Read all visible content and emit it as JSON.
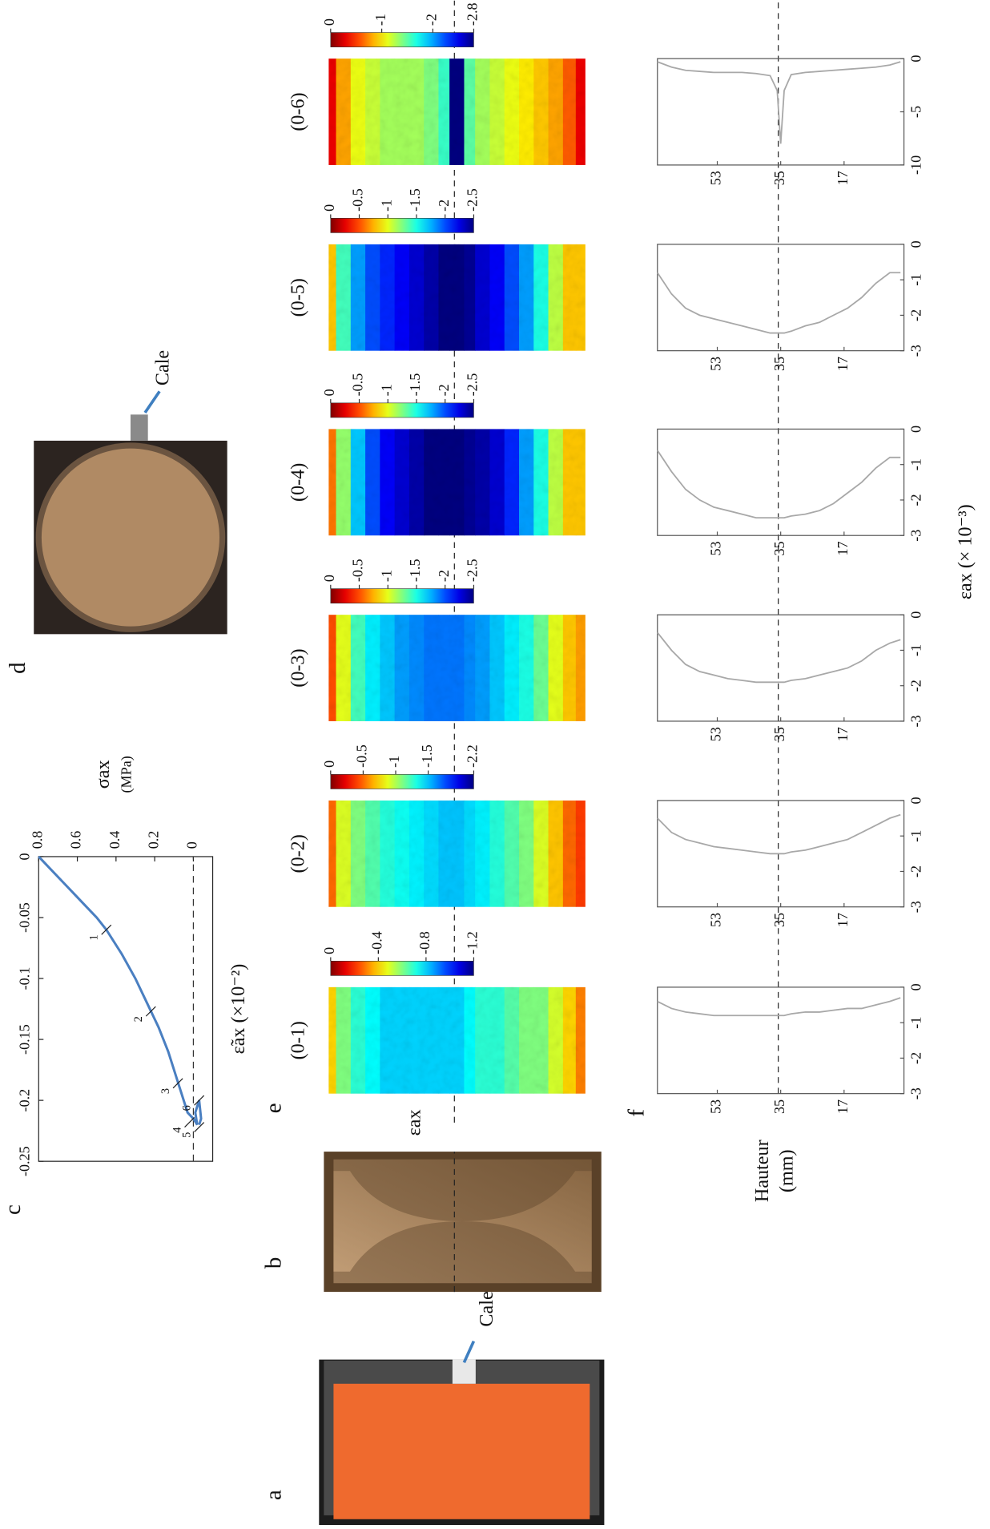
{
  "panel_labels": [
    "a",
    "b",
    "c",
    "d",
    "e",
    "f"
  ],
  "photo_labels": [
    "Cale",
    "Cale"
  ],
  "chart_data": [
    {
      "type": "line",
      "xlabel": "ε̃ax  (×10⁻²)",
      "ylabel": [
        "σax",
        "(MPa)"
      ],
      "x": [
        0,
        -0.01,
        -0.02,
        -0.03,
        -0.04,
        -0.05,
        -0.06,
        -0.08,
        -0.1,
        -0.12,
        -0.14,
        -0.16,
        -0.18,
        -0.19,
        -0.2,
        -0.21,
        -0.215,
        -0.22,
        -0.21,
        -0.2,
        -0.215,
        -0.22
      ],
      "y": [
        0.8,
        0.74,
        0.68,
        0.62,
        0.56,
        0.5,
        0.45,
        0.37,
        0.3,
        0.24,
        0.18,
        0.13,
        0.09,
        0.07,
        0.05,
        0.03,
        0.0,
        -0.02,
        -0.01,
        -0.03,
        -0.04,
        -0.03
      ],
      "xlim": [
        -0.25,
        0
      ],
      "xticks": [
        -0.25,
        -0.2,
        -0.15,
        -0.1,
        -0.05,
        0
      ],
      "ylim": [
        -0.1,
        0.8
      ],
      "yticks": [
        0,
        0.2,
        0.4,
        0.6,
        0.8
      ],
      "color": "#4a7fc1",
      "annotations": [
        {
          "text": "1",
          "x": -0.06,
          "y": 0.45
        },
        {
          "text": "2",
          "x": -0.127,
          "y": 0.22
        },
        {
          "text": "3",
          "x": -0.186,
          "y": 0.08
        },
        {
          "text": "4",
          "x": -0.218,
          "y": 0.02
        },
        {
          "text": "5",
          "x": -0.222,
          "y": -0.03
        },
        {
          "text": "6",
          "x": -0.2,
          "y": -0.03
        }
      ]
    },
    {
      "type": "heatmap",
      "label": "εax",
      "panels": [
        {
          "title": "(0-1)",
          "clim": [
            0,
            -1.2
          ],
          "cticks": [
            0,
            -0.4,
            -0.8,
            -1.2
          ]
        },
        {
          "title": "(0-2)",
          "clim": [
            0,
            -2.2
          ],
          "cticks": [
            0,
            -0.5,
            -1,
            -1.5,
            -2.2
          ]
        },
        {
          "title": "(0-3)",
          "clim": [
            0,
            -2.5
          ],
          "cticks": [
            0,
            -0.5,
            -1,
            -1.5,
            -2,
            -2.5
          ]
        },
        {
          "title": "(0-4)",
          "clim": [
            0,
            -2.5
          ],
          "cticks": [
            0,
            -0.5,
            -1,
            -1.5,
            -2,
            -2.5
          ]
        },
        {
          "title": "(0-5)",
          "clim": [
            0,
            -2.5
          ],
          "cticks": [
            0,
            -0.5,
            -1,
            -1.5,
            -2,
            -2.5
          ]
        },
        {
          "title": "(0-6)",
          "clim": [
            0,
            -2.8
          ],
          "cticks": [
            0,
            -1,
            -2,
            -2.8
          ]
        }
      ]
    },
    {
      "type": "line",
      "xlabel": "εax  (× 10⁻³)",
      "ylabel": [
        "Hauteur",
        "(mm)"
      ],
      "y": [
        70,
        66,
        62,
        58,
        54,
        50,
        46,
        42,
        38,
        36,
        35,
        34,
        32,
        28,
        24,
        20,
        16,
        12,
        8,
        4,
        1
      ],
      "ylim": [
        0,
        70
      ],
      "yticks": [
        17,
        35,
        53
      ],
      "color": "#a8a8a8",
      "panels": [
        {
          "xlim": [
            -3,
            0
          ],
          "xticks": [
            -3,
            -2,
            -1,
            0
          ],
          "values": [
            -0.4,
            -0.6,
            -0.7,
            -0.75,
            -0.8,
            -0.8,
            -0.8,
            -0.8,
            -0.8,
            -0.8,
            -0.8,
            -0.8,
            -0.75,
            -0.7,
            -0.7,
            -0.65,
            -0.6,
            -0.6,
            -0.5,
            -0.4,
            -0.3
          ]
        },
        {
          "xlim": [
            -3,
            0
          ],
          "xticks": [
            -3,
            -2,
            -1,
            0
          ],
          "values": [
            -0.5,
            -0.9,
            -1.1,
            -1.2,
            -1.3,
            -1.35,
            -1.4,
            -1.45,
            -1.5,
            -1.5,
            -1.5,
            -1.5,
            -1.45,
            -1.4,
            -1.3,
            -1.2,
            -1.1,
            -0.9,
            -0.7,
            -0.5,
            -0.4
          ]
        },
        {
          "xlim": [
            -3,
            0
          ],
          "xticks": [
            -3,
            -2,
            -1,
            0
          ],
          "values": [
            -0.5,
            -1.0,
            -1.4,
            -1.6,
            -1.7,
            -1.8,
            -1.85,
            -1.9,
            -1.9,
            -1.9,
            -1.9,
            -1.9,
            -1.85,
            -1.8,
            -1.7,
            -1.6,
            -1.5,
            -1.3,
            -1.0,
            -0.8,
            -0.7
          ]
        },
        {
          "xlim": [
            -3,
            0
          ],
          "xticks": [
            -3,
            -2,
            -1,
            0
          ],
          "values": [
            -0.6,
            -1.2,
            -1.7,
            -2.0,
            -2.2,
            -2.3,
            -2.4,
            -2.5,
            -2.5,
            -2.5,
            -2.5,
            -2.5,
            -2.45,
            -2.4,
            -2.3,
            -2.1,
            -1.8,
            -1.5,
            -1.1,
            -0.8,
            -0.8
          ]
        },
        {
          "xlim": [
            -3,
            0
          ],
          "xticks": [
            -3,
            -2,
            -1,
            0
          ],
          "values": [
            -0.8,
            -1.4,
            -1.8,
            -2.0,
            -2.1,
            -2.2,
            -2.3,
            -2.4,
            -2.5,
            -2.5,
            -2.5,
            -2.5,
            -2.45,
            -2.3,
            -2.2,
            -2.0,
            -1.8,
            -1.5,
            -1.1,
            -0.8,
            -0.8
          ]
        },
        {
          "xlim": [
            -10,
            0
          ],
          "xticks": [
            -10,
            -5,
            0
          ],
          "values": [
            -0.3,
            -0.8,
            -1.1,
            -1.2,
            -1.3,
            -1.3,
            -1.3,
            -1.4,
            -1.6,
            -3,
            -8,
            -3,
            -1.5,
            -1.3,
            -1.2,
            -1.1,
            -1.0,
            -0.9,
            -0.8,
            -0.6,
            -0.3
          ]
        }
      ]
    }
  ]
}
